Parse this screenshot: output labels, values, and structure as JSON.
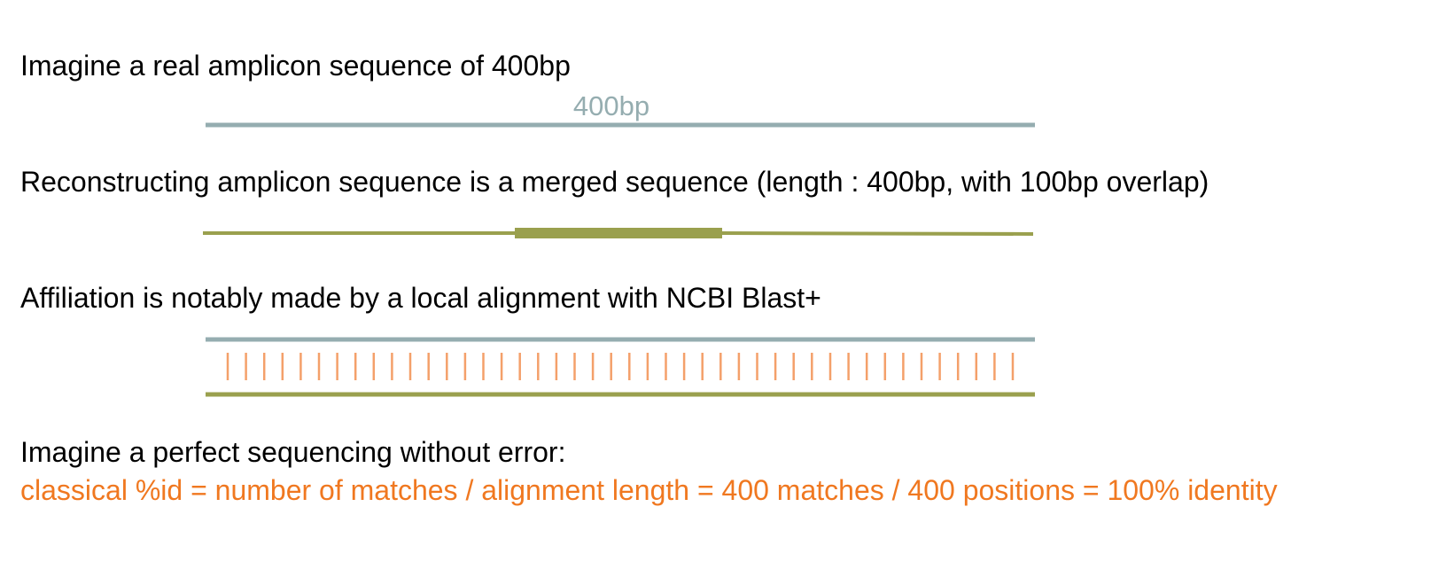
{
  "lines": {
    "real_amplicon": "Imagine a real amplicon sequence of 400bp",
    "reconstructing": "Reconstructing amplicon sequence is a merged sequence (length : 400bp, with 100bp overlap)",
    "affiliation": "Affiliation is notably made by a local alignment with NCBI Blast+",
    "perfect": "Imagine a perfect sequencing without error:",
    "formula": "classical %id = number of matches / alignment length = 400 matches / 400 positions = 100% identity"
  },
  "real_sequence_label": "400bp",
  "colors": {
    "real_sequence": "#95adb0",
    "merged_sequence": "#9aa04e",
    "match_ticks": "#f4a06a",
    "formula_text": "#f07820"
  },
  "alignment": {
    "match_tick_count": 44
  }
}
